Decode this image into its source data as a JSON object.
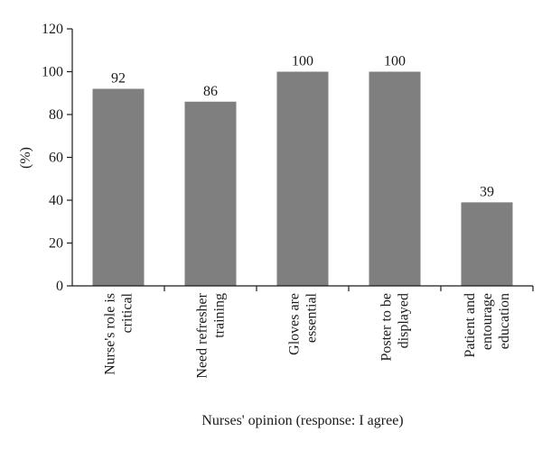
{
  "chart_data": {
    "type": "bar",
    "categories": [
      [
        "Nurse's role is",
        "critical"
      ],
      [
        "Need refresher",
        "training"
      ],
      [
        "Gloves are",
        "essential"
      ],
      [
        "Poster to be",
        "displayed"
      ],
      [
        "Patient and",
        "entourage",
        "education"
      ]
    ],
    "values": [
      92,
      86,
      100,
      100,
      39
    ],
    "xlabel": "Nurses' opinion (response: I agree)",
    "ylabel": "(%)",
    "ylim": [
      0,
      120
    ],
    "yticks": [
      0,
      20,
      40,
      60,
      80,
      100,
      120
    ],
    "grid": false,
    "legend": "none",
    "bar_color": "#7f7f7f",
    "axis_color": "#1a1a1a"
  }
}
